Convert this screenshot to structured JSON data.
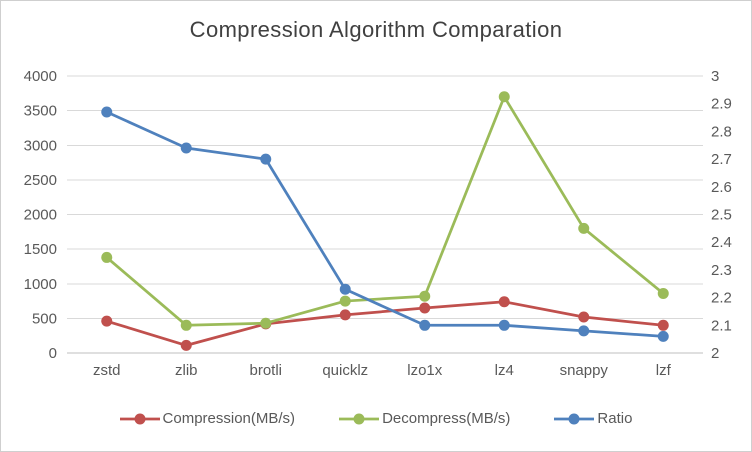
{
  "chart_data": {
    "type": "line",
    "title": "Compression Algorithm Comparation",
    "categories": [
      "zstd",
      "zlib",
      "brotli",
      "quicklz",
      "lzo1x",
      "lz4",
      "snappy",
      "lzf"
    ],
    "series": [
      {
        "name": "Compression(MB/s)",
        "axis": "left",
        "color": "#C0504D",
        "values": [
          460,
          110,
          420,
          550,
          650,
          740,
          520,
          400
        ]
      },
      {
        "name": "Decompress(MB/s)",
        "axis": "left",
        "color": "#9BBB59",
        "values": [
          1380,
          400,
          430,
          750,
          820,
          3700,
          1800,
          860
        ]
      },
      {
        "name": "Ratio",
        "axis": "right",
        "color": "#4F81BD",
        "values": [
          2.87,
          2.74,
          2.7,
          2.23,
          2.1,
          2.1,
          2.08,
          2.06
        ]
      }
    ],
    "left_axis": {
      "min": 0,
      "max": 4000,
      "step": 500,
      "ticks": [
        0,
        500,
        1000,
        1500,
        2000,
        2500,
        3000,
        3500,
        4000
      ]
    },
    "right_axis": {
      "min": 2,
      "max": 3,
      "step": 0.1,
      "tick_labels": [
        "2",
        "2.1",
        "2.2",
        "2.3",
        "2.4",
        "2.5",
        "2.6",
        "2.7",
        "2.8",
        "2.9",
        "3"
      ]
    },
    "grid": true,
    "legend_position": "bottom",
    "colors": {
      "gridline": "#D9D9D9",
      "axis_line": "#BFBFBF",
      "tick_text": "#595959",
      "title_text": "#404040"
    }
  }
}
